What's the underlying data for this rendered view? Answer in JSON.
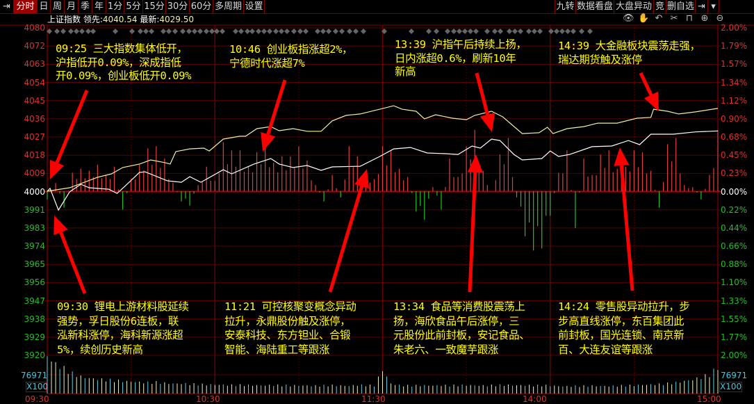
{
  "toolbar": {
    "left_tabs": [
      "分时",
      "日",
      "周",
      "月",
      "季",
      "年",
      "1分",
      "5分",
      "15分",
      "30分",
      "60分",
      "多周期",
      "设置"
    ],
    "active_tab": "分时",
    "right_items": [
      "九转",
      "数据看盘",
      "大盘异动",
      "竞",
      "删自选"
    ],
    "icons": [
      "pin-icon",
      "dropdown-icon"
    ]
  },
  "infobar": {
    "name": "上证指数",
    "lead_label": "领先:",
    "lead_value": "4040.54",
    "last_label": "最新:",
    "last_value": "4029.50"
  },
  "chart_tools": [
    "eye-icon",
    "hand-icon",
    "undo-icon",
    "scissors-icon",
    "lock-icon",
    "zoom-in-icon",
    "zoom-out-icon"
  ],
  "axis": {
    "left": [
      "4080",
      "4072",
      "4063",
      "4054",
      "4045",
      "4036",
      "4027",
      "4018",
      "4009",
      "4000",
      "3991",
      "3983",
      "3974",
      "3965",
      "3956",
      "3947",
      "3938",
      "3929",
      "3920"
    ],
    "right": [
      "2.00%",
      "1.79%",
      "1.57%",
      "1.34%",
      "1.12%",
      "0.90%",
      "0.68%",
      "0.45%",
      "0.23%",
      "0.00%",
      "0.22%",
      "0.44%",
      "0.66%",
      "0.88%",
      "1.10%",
      "1.33%",
      "1.55%",
      "1.77%",
      "2.00%"
    ],
    "time": [
      "09:30",
      "10:30",
      "11:30",
      "14:00",
      "15:00"
    ],
    "volume_mid": "76971",
    "volume_unit": "X100",
    "colors": {
      "up": "#e03030",
      "flat": "#ffffff",
      "down": "#22c022"
    }
  },
  "annotations": {
    "a0925": [
      "09:25 三大指数集体低开，",
      "沪指低开0.09%，深成指低",
      "开0.09%，创业板低开0.09%"
    ],
    "a1046": [
      "10:46 创业板指涨超2%，",
      "宁德时代涨超7%"
    ],
    "a1339": [
      "13:39 沪指午后持续上扬，",
      "日内涨超0.6%，刷新10年",
      "新高"
    ],
    "a1439": [
      "14:39 大金融板块震荡走强，",
      "瑞达期货触及涨停"
    ],
    "a0930": [
      "09:30 锂电上游材料股延续",
      "强势，孚日股份6连板，联",
      "泓新科涨停，海科新源涨超",
      "5%，续创历史新高"
    ],
    "a1121": [
      "11:21 可控核聚变概念异动",
      "拉升，永鼎股份触及涨停，",
      "安泰科技、东方钽业、合锻",
      "智能、海陆重工等跟涨"
    ],
    "a1334": [
      "13:34 食品等消费股震荡上",
      "扬，海欣食品午后涨停，三",
      "元股份此前封板，安记食品、",
      "朱老六、一致魔芋跟涨"
    ],
    "a1424": [
      "14:24 零售股异动拉升，步",
      "步高直线涨停，东百集团此",
      "前封板，国光连锁、南京新",
      "百、大连友谊等跟涨"
    ]
  },
  "chart": {
    "base": 4000,
    "ylim": [
      3920,
      4080
    ],
    "colors": {
      "index_line": "#ffffff",
      "lead_line": "#f0f0a0",
      "annotation": "#ffff00",
      "arrow": "#ff0000"
    },
    "index_line": [
      [
        "09:30",
        4000
      ],
      [
        "09:31",
        4001.4
      ],
      [
        "09:34",
        3990.8
      ],
      [
        "09:38",
        3999.7
      ],
      [
        "09:42",
        4003.4
      ],
      [
        "09:45",
        4001.7
      ],
      [
        "09:52",
        4001.0
      ],
      [
        "09:55",
        3998.9
      ],
      [
        "09:58",
        4002.7
      ],
      [
        "10:03",
        4009.2
      ],
      [
        "10:05",
        4009.5
      ],
      [
        "10:13",
        4005.1
      ],
      [
        "10:18",
        4004.4
      ],
      [
        "10:21",
        4007.1
      ],
      [
        "10:25",
        4004.4
      ],
      [
        "10:33",
        4010.5
      ],
      [
        "10:36",
        4008.5
      ],
      [
        "10:44",
        4013.3
      ],
      [
        "10:50",
        4016.0
      ],
      [
        "10:53",
        4013.3
      ],
      [
        "10:58",
        4011.6
      ],
      [
        "11:03",
        4012.6
      ],
      [
        "11:08",
        4010.2
      ],
      [
        "11:12",
        4011.9
      ],
      [
        "11:22",
        4012.2
      ],
      [
        "11:29",
        4017.0
      ],
      [
        "13:04",
        4020.7
      ],
      [
        "13:10",
        4021.4
      ],
      [
        "13:16",
        4018.7
      ],
      [
        "13:22",
        4018.4
      ],
      [
        "13:27",
        4018.0
      ],
      [
        "13:32",
        4022.1
      ],
      [
        "13:35",
        4021.1
      ],
      [
        "13:39",
        4025.5
      ],
      [
        "13:42",
        4024.8
      ],
      [
        "13:47",
        4018.0
      ],
      [
        "13:50",
        4015.3
      ],
      [
        "13:57",
        4016.0
      ],
      [
        "14:00",
        4019.7
      ],
      [
        "14:03",
        4017.0
      ],
      [
        "14:07",
        4018.0
      ],
      [
        "14:15",
        4021.8
      ],
      [
        "14:22",
        4022.1
      ],
      [
        "14:28",
        4024.8
      ],
      [
        "14:32",
        4022.8
      ],
      [
        "14:36",
        4027.9
      ],
      [
        "14:44",
        4027.9
      ],
      [
        "14:52",
        4029.0
      ],
      [
        "15:00",
        4029.5
      ]
    ],
    "lead_line": [
      [
        "09:30",
        4000
      ],
      [
        "09:38",
        4001.7
      ],
      [
        "09:48",
        4006.8
      ],
      [
        "09:53",
        4008.5
      ],
      [
        "09:57",
        4011.6
      ],
      [
        "10:03",
        4013.3
      ],
      [
        "10:07",
        4015.3
      ],
      [
        "10:12",
        4014.0
      ],
      [
        "10:14",
        4013.3
      ],
      [
        "10:16",
        4019.4
      ],
      [
        "10:21",
        4020.7
      ],
      [
        "10:26",
        4021.1
      ],
      [
        "10:28",
        4019.7
      ],
      [
        "10:33",
        4025.5
      ],
      [
        "10:39",
        4026.9
      ],
      [
        "10:41",
        4026.9
      ],
      [
        "10:45",
        4030.6
      ],
      [
        "10:50",
        4031.6
      ],
      [
        "10:53",
        4029.6
      ],
      [
        "10:58",
        4030.6
      ],
      [
        "11:03",
        4029.3
      ],
      [
        "11:08",
        4029.3
      ],
      [
        "11:12",
        4034.4
      ],
      [
        "11:17",
        4037.1
      ],
      [
        "11:22",
        4037.8
      ],
      [
        "11:29",
        4040.1
      ],
      [
        "13:04",
        4041.8
      ],
      [
        "13:07",
        4040.1
      ],
      [
        "13:12",
        4039.1
      ],
      [
        "13:15",
        4035.4
      ],
      [
        "13:19",
        4037.4
      ],
      [
        "13:25",
        4035.7
      ],
      [
        "13:30",
        4035.0
      ],
      [
        "13:33",
        4037.1
      ],
      [
        "13:39",
        4039.1
      ],
      [
        "13:43",
        4036.4
      ],
      [
        "13:50",
        4028.2
      ],
      [
        "13:56",
        4028.6
      ],
      [
        "13:59",
        4031.3
      ],
      [
        "14:01",
        4028.2
      ],
      [
        "14:06",
        4030.6
      ],
      [
        "14:12",
        4031.6
      ],
      [
        "14:17",
        4033.3
      ],
      [
        "14:24",
        4033.3
      ],
      [
        "14:31",
        4035.7
      ],
      [
        "14:36",
        4036.1
      ],
      [
        "14:37",
        4040.1
      ],
      [
        "14:42",
        4039.1
      ],
      [
        "14:46",
        4037.8
      ],
      [
        "14:52",
        4038.8
      ],
      [
        "15:00",
        4040.5
      ]
    ],
    "strength_bars_every_3min": [
      -4,
      4,
      -8,
      9,
      11,
      10,
      13,
      8,
      12,
      -9,
      6,
      13,
      21,
      22,
      16,
      4,
      -5,
      -7,
      3,
      12,
      5,
      24,
      20,
      20,
      12,
      19,
      25,
      14,
      17,
      17,
      22,
      15,
      3,
      -5,
      8,
      -3,
      22,
      17,
      8,
      6,
      22,
      20,
      11,
      7,
      -10,
      -14,
      2,
      -9,
      16,
      7,
      22,
      30,
      10,
      0,
      18,
      26,
      -3,
      -22,
      -29,
      -28,
      -12,
      9,
      20,
      -18,
      16,
      8,
      18,
      20,
      11,
      12,
      20,
      19,
      10,
      -8,
      23,
      26,
      3,
      2,
      -4,
      8,
      30
    ],
    "volume_every_3min": [
      150000,
      118000,
      100000,
      80000,
      68000,
      62000,
      58000,
      55000,
      52000,
      50000,
      48000,
      46000,
      44000,
      45000,
      42000,
      40000,
      40000,
      38000,
      37000,
      36000,
      36000,
      35000,
      34000,
      34000,
      34000,
      33000,
      33000,
      34000,
      33000,
      32000,
      33000,
      32000,
      31000,
      32000,
      33000,
      32000,
      31000,
      34000,
      33000,
      32000,
      95000,
      40000,
      33000,
      32000,
      32000,
      33000,
      32000,
      33000,
      32000,
      33000,
      34000,
      33000,
      32000,
      33000,
      34000,
      34000,
      33000,
      33000,
      32000,
      33000,
      32000,
      30000,
      29000,
      30000,
      30000,
      31000,
      30000,
      30000,
      31000,
      32000,
      33000,
      35000,
      36000,
      37000,
      40000,
      44000,
      50000,
      56000,
      65000,
      75000,
      105000
    ]
  }
}
